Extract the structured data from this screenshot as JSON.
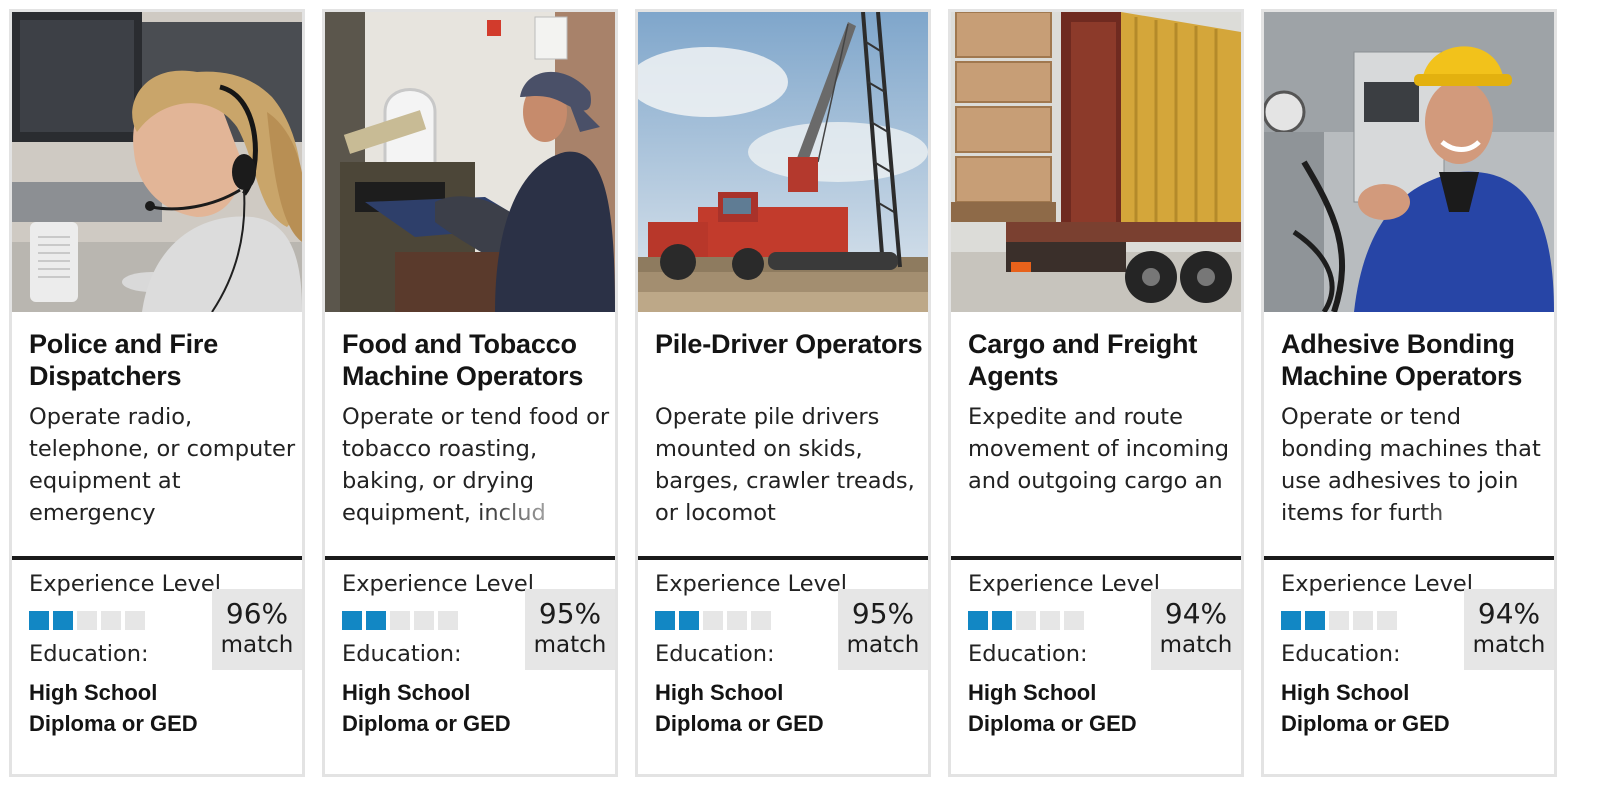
{
  "labels": {
    "experience": "Experience Level",
    "education": "Education:",
    "match": "match"
  },
  "colors": {
    "meter_on": "#1287c4",
    "meter_off": "#e6e6e6",
    "match_bg": "#e6e6e6",
    "divider": "#1a1a1a"
  },
  "cards": [
    {
      "title": "Police and Fire Dispatchers",
      "description": "Operate radio, telephone, or computer equipment at emergency",
      "experience_level": 2,
      "experience_max": 5,
      "education": "High School Diploma or GED",
      "match_pct": "96%",
      "photo": "dispatcher-with-headset-photo"
    },
    {
      "title": "Food and Tobacco Machine Operators",
      "description": "Operate or tend food or tobacco roasting, baking, or drying equipment, includ",
      "experience_level": 2,
      "experience_max": 5,
      "education": "High School Diploma or GED",
      "match_pct": "95%",
      "photo": "worker-at-oven-photo"
    },
    {
      "title": "Pile-Driver Operators",
      "description": "Operate pile drivers mounted on skids, barges, crawler treads, or locomot",
      "experience_level": 2,
      "experience_max": 5,
      "education": "High School Diploma or GED",
      "match_pct": "95%",
      "photo": "pile-driver-rig-photo"
    },
    {
      "title": "Cargo and Freight Agents",
      "description": "Expedite and route movement of incoming and outgoing cargo an",
      "experience_level": 2,
      "experience_max": 5,
      "education": "High School Diploma or GED",
      "match_pct": "94%",
      "photo": "cargo-truck-container-photo"
    },
    {
      "title": "Adhesive Bonding Machine Operators",
      "description": "Operate or tend bonding machines that use adhesives to join items for furth",
      "experience_level": 2,
      "experience_max": 5,
      "education": "High School Diploma or GED",
      "match_pct": "94%",
      "photo": "worker-in-hard-hat-photo"
    }
  ]
}
